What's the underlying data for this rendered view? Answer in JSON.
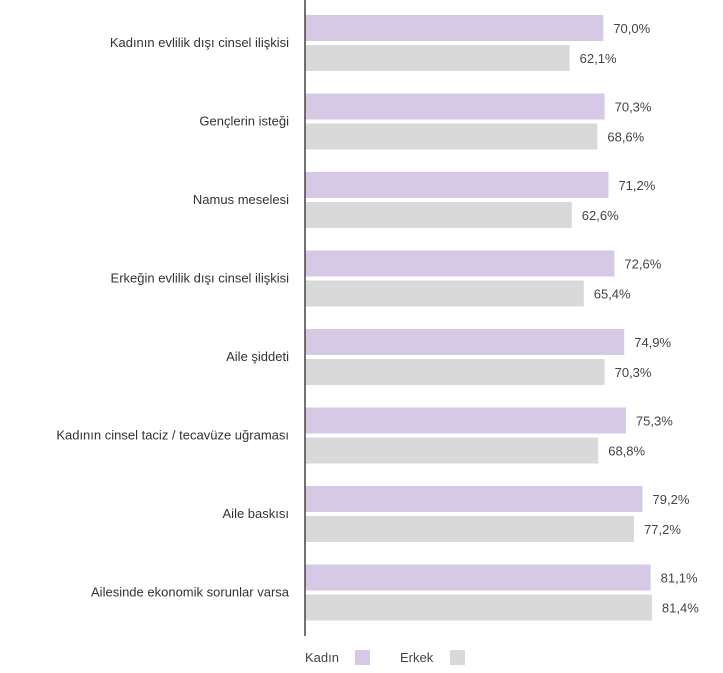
{
  "chart_data": {
    "type": "bar",
    "orientation": "horizontal",
    "categories": [
      "Kadının evlilik dışı cinsel ilişkisi",
      "Gençlerin isteği",
      "Namus meselesi",
      "Erkeğin evlilik dışı cinsel ilişkisi",
      "Aile şiddeti",
      "Kadının cinsel taciz / tecavüze uğraması",
      "Aile baskısı",
      "Ailesinde ekonomik sorunlar varsa"
    ],
    "series": [
      {
        "name": "Kadın",
        "color": "#d6c9e6",
        "values": [
          70.0,
          70.3,
          71.2,
          72.6,
          74.9,
          75.3,
          79.2,
          81.1
        ],
        "labels": [
          "70,0%",
          "70,3%",
          "71,2%",
          "72,6%",
          "74,9%",
          "75,3%",
          "79,2%",
          "81,1%"
        ]
      },
      {
        "name": "Erkek",
        "color": "#d9d9d9",
        "values": [
          62.1,
          68.6,
          62.6,
          65.4,
          70.3,
          68.8,
          77.2,
          81.4
        ],
        "labels": [
          "62,1%",
          "68,6%",
          "62,6%",
          "65,4%",
          "70,3%",
          "68,8%",
          "77,2%",
          "81,4%"
        ]
      }
    ],
    "xlim": [
      0,
      100
    ],
    "grid": false,
    "legend": "bottom-left",
    "axis_color": "#444444"
  }
}
